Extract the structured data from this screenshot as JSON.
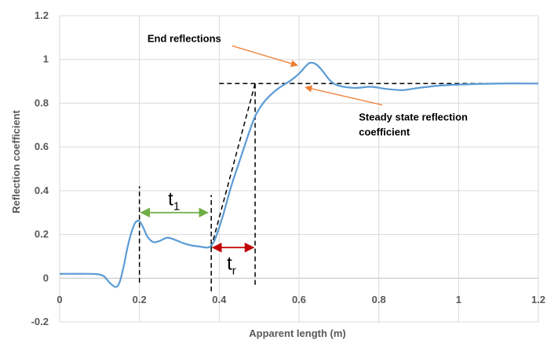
{
  "chart_data": {
    "type": "line",
    "title": "",
    "xlabel": "Apparent length (m)",
    "ylabel": "Reflection coefficient",
    "xlim": [
      0,
      1.2
    ],
    "ylim": [
      -0.2,
      1.2
    ],
    "grid": true,
    "x_ticks": [
      "0",
      "0.2",
      "0.4",
      "0.6",
      "0.8",
      "1",
      "1.2"
    ],
    "y_ticks": [
      "-0.2",
      "0",
      "0.2",
      "0.4",
      "0.6",
      "0.8",
      "1",
      "1.2"
    ],
    "series": [
      {
        "color": "#5b9bd5",
        "points": [
          [
            0.0,
            0.02
          ],
          [
            0.05,
            0.02
          ],
          [
            0.09,
            0.019
          ],
          [
            0.11,
            0.01
          ],
          [
            0.125,
            -0.02
          ],
          [
            0.14,
            -0.04
          ],
          [
            0.15,
            -0.02
          ],
          [
            0.16,
            0.05
          ],
          [
            0.17,
            0.14
          ],
          [
            0.18,
            0.21
          ],
          [
            0.19,
            0.255
          ],
          [
            0.2,
            0.26
          ],
          [
            0.21,
            0.23
          ],
          [
            0.22,
            0.19
          ],
          [
            0.235,
            0.165
          ],
          [
            0.25,
            0.17
          ],
          [
            0.27,
            0.185
          ],
          [
            0.29,
            0.175
          ],
          [
            0.31,
            0.16
          ],
          [
            0.33,
            0.15
          ],
          [
            0.35,
            0.145
          ],
          [
            0.37,
            0.14
          ],
          [
            0.38,
            0.15
          ],
          [
            0.39,
            0.18
          ],
          [
            0.41,
            0.29
          ],
          [
            0.43,
            0.42
          ],
          [
            0.45,
            0.53
          ],
          [
            0.47,
            0.64
          ],
          [
            0.49,
            0.74
          ],
          [
            0.51,
            0.8
          ],
          [
            0.53,
            0.84
          ],
          [
            0.55,
            0.87
          ],
          [
            0.58,
            0.905
          ],
          [
            0.6,
            0.935
          ],
          [
            0.62,
            0.975
          ],
          [
            0.63,
            0.985
          ],
          [
            0.645,
            0.975
          ],
          [
            0.66,
            0.945
          ],
          [
            0.68,
            0.9
          ],
          [
            0.7,
            0.88
          ],
          [
            0.74,
            0.87
          ],
          [
            0.78,
            0.875
          ],
          [
            0.82,
            0.865
          ],
          [
            0.86,
            0.86
          ],
          [
            0.9,
            0.87
          ],
          [
            0.95,
            0.88
          ],
          [
            1.0,
            0.885
          ],
          [
            1.1,
            0.89
          ],
          [
            1.2,
            0.89
          ]
        ]
      }
    ],
    "reference_lines": {
      "steady_state": {
        "x": [
          0.4,
          1.2
        ],
        "y": 0.89
      },
      "rise_slope": {
        "x": [
          0.38,
          0.49
        ],
        "y": [
          0.14,
          0.89
        ]
      },
      "verticals": [
        {
          "x": 0.2,
          "y": [
            -0.02,
            0.42
          ]
        },
        {
          "x": 0.38,
          "y": [
            -0.06,
            0.38
          ]
        },
        {
          "x": 0.49,
          "y": [
            -0.03,
            0.89
          ]
        }
      ]
    },
    "intervals": [
      {
        "label": "t",
        "subscript": "1",
        "x": [
          0.2,
          0.375
        ],
        "y": 0.3,
        "color": "#70ad47"
      },
      {
        "label": "t",
        "subscript": "r",
        "x": [
          0.38,
          0.49
        ],
        "y": 0.14,
        "color": "#c00000"
      }
    ],
    "annotations": [
      {
        "text": "End reflections",
        "point": [
          0.6,
          0.98
        ],
        "text_pos": [
          0.22,
          1.08
        ],
        "arrow_color": "#ed7d31"
      },
      {
        "text_lines": [
          "Steady state reflection",
          "coefficient"
        ],
        "point": [
          0.62,
          0.88
        ],
        "text_pos": [
          0.75,
          0.72
        ],
        "arrow_color": "#ed7d31"
      }
    ]
  }
}
